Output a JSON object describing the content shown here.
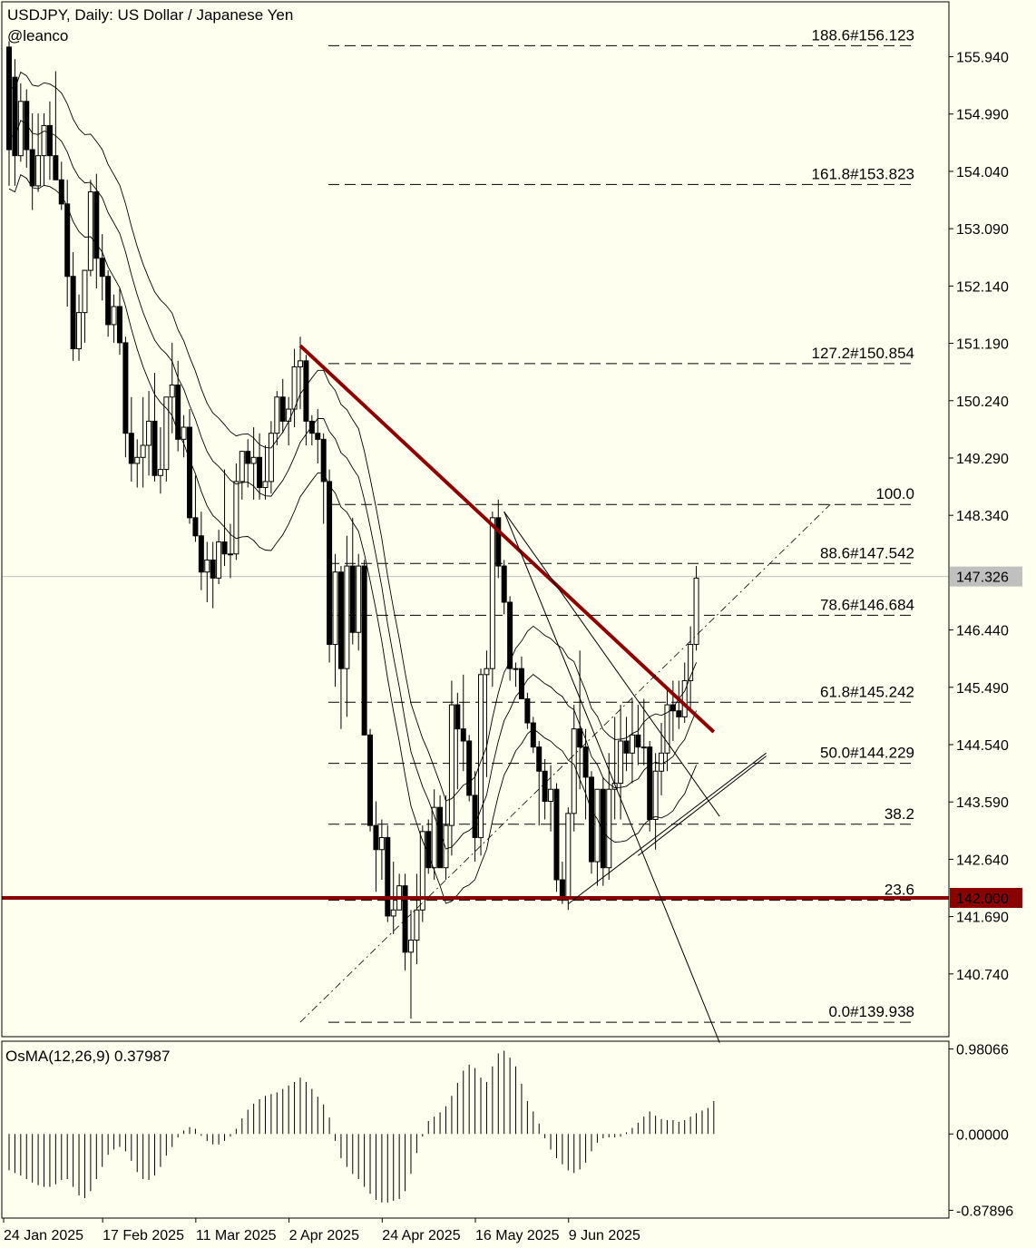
{
  "chart_data": {
    "type": "candlestick",
    "title": "USDJPY, Daily:  US Dollar / Japanese Yen",
    "watermark": "@leanco",
    "colors": {
      "background": "#fffff0",
      "trendline": "#8b0000",
      "level": "#8b0000",
      "ink": "#000000"
    },
    "ylim": [
      139.7,
      156.85
    ],
    "price_ticks": [
      "155.940",
      "154.990",
      "154.040",
      "153.090",
      "152.140",
      "151.190",
      "150.240",
      "149.290",
      "148.340",
      "147.326",
      "146.440",
      "145.490",
      "144.540",
      "143.590",
      "142.640",
      "142.000",
      "141.690",
      "140.740"
    ],
    "current_price": {
      "label": "147.326",
      "value": 147.326
    },
    "support_level": {
      "label": "142.000",
      "value": 142.0
    },
    "x_labels": [
      "24 Jan 2025",
      "17 Feb 2025",
      "11 Mar 2025",
      "2 Apr 2025",
      "24 Apr 2025",
      "16 May 2025",
      "9 Jun 2025"
    ],
    "fib_levels": [
      {
        "label": "188.6#156.123",
        "value": 156.123
      },
      {
        "label": "161.8#153.823",
        "value": 153.823
      },
      {
        "label": "127.2#150.854",
        "value": 150.854
      },
      {
        "label": "100.0",
        "value": 148.52
      },
      {
        "label": "88.6#147.542",
        "value": 147.542
      },
      {
        "label": "78.6#146.684",
        "value": 146.684
      },
      {
        "label": "61.8#145.242",
        "value": 145.242
      },
      {
        "label": "50.0#144.229",
        "value": 144.229
      },
      {
        "label": "38.2",
        "value": 143.22
      },
      {
        "label": "23.6",
        "value": 141.96
      },
      {
        "label": "0.0#139.938",
        "value": 139.938
      }
    ],
    "candles": [
      [
        156.1,
        156.2,
        153.8,
        154.4
      ],
      [
        155.6,
        155.9,
        153.8,
        154.3
      ],
      [
        154.3,
        155.5,
        154.2,
        155.2
      ],
      [
        155.2,
        155.4,
        154.1,
        154.4
      ],
      [
        154.4,
        155.0,
        153.4,
        153.8
      ],
      [
        153.8,
        155.0,
        153.7,
        154.3
      ],
      [
        154.3,
        155.0,
        153.8,
        154.8
      ],
      [
        154.8,
        155.2,
        153.9,
        154.3
      ],
      [
        154.3,
        155.7,
        153.9,
        153.9
      ],
      [
        153.9,
        154.2,
        153.4,
        153.5
      ],
      [
        153.5,
        153.9,
        151.8,
        152.3
      ],
      [
        152.3,
        152.7,
        150.9,
        151.1
      ],
      [
        151.1,
        152.0,
        150.9,
        151.7
      ],
      [
        151.7,
        152.4,
        151.2,
        152.4
      ],
      [
        152.4,
        153.9,
        152.3,
        153.7
      ],
      [
        153.7,
        154.0,
        152.1,
        152.6
      ],
      [
        152.6,
        153.0,
        151.9,
        152.3
      ],
      [
        152.3,
        152.4,
        151.3,
        151.5
      ],
      [
        151.5,
        152.0,
        151.2,
        151.8
      ],
      [
        151.8,
        152.1,
        151.0,
        151.2
      ],
      [
        151.2,
        151.3,
        149.3,
        149.7
      ],
      [
        149.7,
        150.3,
        148.9,
        149.2
      ],
      [
        149.2,
        149.6,
        148.8,
        149.3
      ],
      [
        149.3,
        150.3,
        148.8,
        149.5
      ],
      [
        149.5,
        150.4,
        149.0,
        149.9
      ],
      [
        149.9,
        150.7,
        148.9,
        149.0
      ],
      [
        149.0,
        149.8,
        148.7,
        149.1
      ],
      [
        149.1,
        150.3,
        148.9,
        150.3
      ],
      [
        150.3,
        151.2,
        149.7,
        150.5
      ],
      [
        150.5,
        150.9,
        149.4,
        149.6
      ],
      [
        149.6,
        150.0,
        149.3,
        149.8
      ],
      [
        149.8,
        150.1,
        148.2,
        148.3
      ],
      [
        148.3,
        149.0,
        147.9,
        148.0
      ],
      [
        148.0,
        148.4,
        147.1,
        147.4
      ],
      [
        147.4,
        147.9,
        146.9,
        147.6
      ],
      [
        147.6,
        147.9,
        146.8,
        147.3
      ],
      [
        147.3,
        148.1,
        147.2,
        147.9
      ],
      [
        147.9,
        149.1,
        147.5,
        147.7
      ],
      [
        147.7,
        148.2,
        147.3,
        147.7
      ],
      [
        147.7,
        149.2,
        147.6,
        148.9
      ],
      [
        148.9,
        149.4,
        148.6,
        149.4
      ],
      [
        149.4,
        149.6,
        148.8,
        149.2
      ],
      [
        149.2,
        149.8,
        148.6,
        149.3
      ],
      [
        149.3,
        149.7,
        148.6,
        148.8
      ],
      [
        148.8,
        149.5,
        148.6,
        148.9
      ],
      [
        148.9,
        149.9,
        148.7,
        149.7
      ],
      [
        149.7,
        150.4,
        149.5,
        150.3
      ],
      [
        150.3,
        150.6,
        149.7,
        149.9
      ],
      [
        149.9,
        150.3,
        149.5,
        150.1
      ],
      [
        150.1,
        151.1,
        149.8,
        150.8
      ],
      [
        150.8,
        151.3,
        150.1,
        150.9
      ],
      [
        150.9,
        151.0,
        149.5,
        149.9
      ],
      [
        149.9,
        150.0,
        149.5,
        149.7
      ],
      [
        149.7,
        150.1,
        149.2,
        149.6
      ],
      [
        149.6,
        149.7,
        148.2,
        148.9
      ],
      [
        148.9,
        149.1,
        145.9,
        146.2
      ],
      [
        146.2,
        147.7,
        145.5,
        147.4
      ],
      [
        147.4,
        147.5,
        144.8,
        145.8
      ],
      [
        145.8,
        148.0,
        145.0,
        147.5
      ],
      [
        147.5,
        148.3,
        146.2,
        146.4
      ],
      [
        146.4,
        147.7,
        146.1,
        147.5
      ],
      [
        147.5,
        147.6,
        144.7,
        144.7
      ],
      [
        144.7,
        144.8,
        143.1,
        143.2
      ],
      [
        143.2,
        143.6,
        142.1,
        142.8
      ],
      [
        142.8,
        143.3,
        142.3,
        143.0
      ],
      [
        143.0,
        143.2,
        141.6,
        141.7
      ],
      [
        141.7,
        142.6,
        141.4,
        141.8
      ],
      [
        141.8,
        142.4,
        141.9,
        142.2
      ],
      [
        142.2,
        142.4,
        140.8,
        141.1
      ],
      [
        141.1,
        141.8,
        140.0,
        141.3
      ],
      [
        141.3,
        142.4,
        140.9,
        141.8
      ],
      [
        141.8,
        143.2,
        141.6,
        143.1
      ],
      [
        143.1,
        143.3,
        142.4,
        142.5
      ],
      [
        142.5,
        143.8,
        142.3,
        143.5
      ],
      [
        143.5,
        143.7,
        142.5,
        142.5
      ],
      [
        142.5,
        143.7,
        142.3,
        143.2
      ],
      [
        143.2,
        145.6,
        142.7,
        145.2
      ],
      [
        145.2,
        145.4,
        143.8,
        144.8
      ],
      [
        144.8,
        145.7,
        144.1,
        144.6
      ],
      [
        144.6,
        144.7,
        143.6,
        143.7
      ],
      [
        143.7,
        144.1,
        142.6,
        143.0
      ],
      [
        143.0,
        145.8,
        142.7,
        145.7
      ],
      [
        145.7,
        146.1,
        144.0,
        145.8
      ],
      [
        145.8,
        148.4,
        145.5,
        148.3
      ],
      [
        148.3,
        148.6,
        147.3,
        147.5
      ],
      [
        147.5,
        147.6,
        146.7,
        146.9
      ],
      [
        146.9,
        147.0,
        145.6,
        145.8
      ],
      [
        145.8,
        145.9,
        145.5,
        145.8
      ],
      [
        145.8,
        146.0,
        145.3,
        145.3
      ],
      [
        145.3,
        145.4,
        144.8,
        144.9
      ],
      [
        144.9,
        145.0,
        144.4,
        144.5
      ],
      [
        144.5,
        144.6,
        143.2,
        144.1
      ],
      [
        144.1,
        144.3,
        143.3,
        143.6
      ],
      [
        143.6,
        144.2,
        143.1,
        143.8
      ],
      [
        143.8,
        143.9,
        142.1,
        142.3
      ],
      [
        142.3,
        142.6,
        141.9,
        142.0
      ],
      [
        142.0,
        143.5,
        141.8,
        143.4
      ],
      [
        143.4,
        145.2,
        143.1,
        144.8
      ],
      [
        144.8,
        146.1,
        143.8,
        144.5
      ],
      [
        144.5,
        144.8,
        143.3,
        144.0
      ],
      [
        144.0,
        144.1,
        142.4,
        142.6
      ],
      [
        142.6,
        143.8,
        142.2,
        143.8
      ],
      [
        143.8,
        144.0,
        142.2,
        142.5
      ],
      [
        142.5,
        144.4,
        142.3,
        143.8
      ],
      [
        143.8,
        145.0,
        143.3,
        143.9
      ],
      [
        143.9,
        145.2,
        143.3,
        144.6
      ],
      [
        144.6,
        145.0,
        144.1,
        144.4
      ],
      [
        144.4,
        145.3,
        143.9,
        144.7
      ],
      [
        144.7,
        145.2,
        144.2,
        144.5
      ],
      [
        144.5,
        145.3,
        144.2,
        144.5
      ],
      [
        144.5,
        144.6,
        143.1,
        143.3
      ],
      [
        143.3,
        144.4,
        142.8,
        144.1
      ],
      [
        144.1,
        144.9,
        143.7,
        144.4
      ],
      [
        144.4,
        145.5,
        144.1,
        145.2
      ],
      [
        145.2,
        145.6,
        144.6,
        145.1
      ],
      [
        145.1,
        145.6,
        144.8,
        145.0
      ],
      [
        145.0,
        145.9,
        144.9,
        145.6
      ],
      [
        145.6,
        146.5,
        145.1,
        146.2
      ],
      [
        146.2,
        147.5,
        146.1,
        147.3
      ]
    ],
    "trendlines": [
      {
        "from": [
          50,
          151.15
        ],
        "to": [
          121,
          144.75
        ],
        "style": "thick"
      },
      {
        "from": [
          85,
          148.4
        ],
        "to": [
          122,
          139.6
        ],
        "style": "thin"
      },
      {
        "from": [
          85,
          148.4
        ],
        "to": [
          122,
          143.35
        ],
        "style": "thin"
      },
      {
        "from": [
          96,
          141.9
        ],
        "to": [
          130,
          144.4
        ],
        "style": "thin"
      },
      {
        "from": [
          108,
          142.7
        ],
        "to": [
          130,
          144.35
        ],
        "style": "thin"
      },
      {
        "from": [
          50,
          139.94
        ],
        "to": [
          141,
          148.52
        ],
        "style": "dashdot"
      }
    ],
    "oscillator": {
      "label": "OsMA(12,26,9) 0.37987",
      "ticks": [
        "0.98066",
        "0.00000",
        "-0.87896"
      ],
      "range": [
        -0.97,
        1.07
      ],
      "values": [
        -0.42,
        -0.45,
        -0.48,
        -0.52,
        -0.56,
        -0.59,
        -0.61,
        -0.61,
        -0.58,
        -0.53,
        -0.52,
        -0.61,
        -0.71,
        -0.74,
        -0.66,
        -0.52,
        -0.38,
        -0.24,
        -0.18,
        -0.15,
        -0.2,
        -0.31,
        -0.44,
        -0.52,
        -0.53,
        -0.48,
        -0.38,
        -0.25,
        -0.15,
        -0.04,
        0.04,
        0.08,
        0.06,
        -0.02,
        -0.08,
        -0.12,
        -0.12,
        -0.08,
        -0.03,
        0.06,
        0.18,
        0.28,
        0.35,
        0.4,
        0.44,
        0.46,
        0.48,
        0.52,
        0.56,
        0.6,
        0.65,
        0.6,
        0.52,
        0.43,
        0.34,
        0.19,
        -0.08,
        -0.28,
        -0.38,
        -0.46,
        -0.52,
        -0.61,
        -0.69,
        -0.76,
        -0.79,
        -0.79,
        -0.77,
        -0.75,
        -0.66,
        -0.46,
        -0.22,
        -0.03,
        0.15,
        0.2,
        0.25,
        0.32,
        0.44,
        0.59,
        0.73,
        0.8,
        0.76,
        0.65,
        0.6,
        0.78,
        0.93,
        0.96,
        0.88,
        0.78,
        0.58,
        0.38,
        0.26,
        0.12,
        -0.05,
        -0.18,
        -0.28,
        -0.35,
        -0.42,
        -0.45,
        -0.41,
        -0.33,
        -0.2,
        -0.1,
        -0.05,
        -0.04,
        -0.04,
        -0.03,
        0.02,
        0.07,
        0.13,
        0.2,
        0.26,
        0.21,
        0.17,
        0.16,
        0.16,
        0.14,
        0.16,
        0.2,
        0.24,
        0.27,
        0.3,
        0.38
      ]
    }
  }
}
